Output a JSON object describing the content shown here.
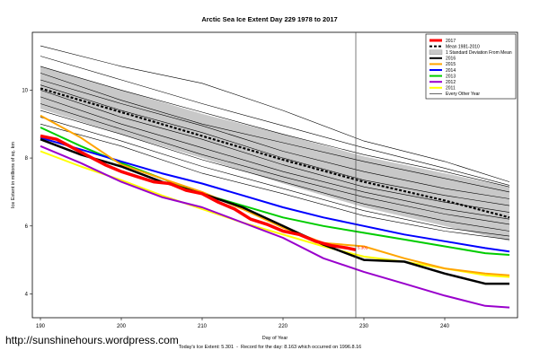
{
  "chart_data": {
    "type": "line",
    "title": "Arctic Sea Ice Extent Day 229 1978 to 2017",
    "xlabel": "Day of Year",
    "ylabel": "Ice Extent in millions of sq. km",
    "xlim": [
      189,
      249
    ],
    "ylim": [
      3.3,
      11.7
    ],
    "x_ticks": [
      190,
      200,
      210,
      220,
      230,
      240
    ],
    "y_ticks": [
      4,
      6,
      8,
      10
    ],
    "marker_day": 229,
    "marker_label": "5.301",
    "legend_position": "top-right",
    "mean_1981_2010": {
      "x": [
        190,
        200,
        210,
        220,
        230,
        240,
        248
      ],
      "values": [
        10.05,
        9.35,
        8.65,
        7.95,
        7.3,
        6.75,
        6.25
      ]
    },
    "std_band": {
      "x": [
        190,
        200,
        210,
        220,
        230,
        240,
        248
      ],
      "upper": [
        10.7,
        10.0,
        9.3,
        8.7,
        8.05,
        7.55,
        7.15
      ],
      "lower": [
        9.45,
        8.7,
        8.0,
        7.25,
        6.55,
        6.0,
        5.55
      ]
    },
    "series": [
      {
        "name": "2017",
        "color": "#ff0000",
        "width": 3.5,
        "x": [
          190,
          192,
          194,
          196,
          198,
          200,
          202,
          204,
          206,
          208,
          210,
          212,
          214,
          216,
          218,
          220,
          222,
          224,
          226,
          228,
          229
        ],
        "values": [
          8.65,
          8.55,
          8.3,
          8.05,
          7.8,
          7.6,
          7.45,
          7.3,
          7.25,
          7.05,
          6.95,
          6.7,
          6.5,
          6.2,
          6.05,
          5.85,
          5.75,
          5.55,
          5.42,
          5.35,
          5.3
        ]
      },
      {
        "name": "2016",
        "color": "#000000",
        "width": 2.5,
        "x": [
          190,
          195,
          200,
          205,
          210,
          215,
          220,
          225,
          230,
          235,
          240,
          245,
          248
        ],
        "values": [
          8.55,
          8.1,
          7.75,
          7.3,
          6.95,
          6.55,
          6.0,
          5.45,
          5.0,
          4.95,
          4.6,
          4.3,
          4.3
        ]
      },
      {
        "name": "2015",
        "color": "#ffa500",
        "width": 2,
        "x": [
          190,
          195,
          200,
          205,
          210,
          215,
          220,
          225,
          230,
          235,
          240,
          245,
          248
        ],
        "values": [
          9.25,
          8.6,
          7.8,
          7.4,
          7.0,
          6.5,
          5.95,
          5.5,
          5.4,
          5.05,
          4.75,
          4.6,
          4.55
        ]
      },
      {
        "name": "2014",
        "color": "#0000ff",
        "width": 2,
        "x": [
          190,
          195,
          200,
          205,
          210,
          215,
          220,
          225,
          230,
          235,
          240,
          245,
          248
        ],
        "values": [
          8.6,
          8.25,
          7.9,
          7.55,
          7.25,
          6.9,
          6.55,
          6.25,
          6.0,
          5.75,
          5.55,
          5.35,
          5.25
        ]
      },
      {
        "name": "2013",
        "color": "#00cc00",
        "width": 2,
        "x": [
          190,
          195,
          200,
          205,
          210,
          215,
          220,
          225,
          230,
          235,
          240,
          245,
          248
        ],
        "values": [
          8.9,
          8.35,
          7.85,
          7.4,
          6.95,
          6.6,
          6.25,
          6.0,
          5.8,
          5.6,
          5.4,
          5.2,
          5.15
        ]
      },
      {
        "name": "2012",
        "color": "#9900cc",
        "width": 2,
        "x": [
          190,
          195,
          200,
          205,
          210,
          215,
          220,
          225,
          230,
          235,
          240,
          245,
          248
        ],
        "values": [
          8.35,
          7.85,
          7.3,
          6.85,
          6.55,
          6.1,
          5.65,
          5.05,
          4.65,
          4.3,
          3.95,
          3.65,
          3.6
        ]
      },
      {
        "name": "2011",
        "color": "#ffff00",
        "width": 2,
        "x": [
          190,
          195,
          200,
          205,
          210,
          215,
          220,
          225,
          230,
          235,
          240,
          245,
          248
        ],
        "values": [
          8.2,
          7.75,
          7.35,
          6.9,
          6.5,
          6.1,
          5.75,
          5.4,
          5.1,
          4.95,
          4.75,
          4.55,
          4.5
        ]
      },
      {
        "name": "Every Other Year",
        "color": "#000000",
        "width": 0.6,
        "x": [
          190,
          200,
          210,
          220,
          230,
          240,
          248
        ],
        "values": [
          11.3,
          10.7,
          10.2,
          9.4,
          8.5,
          7.9,
          7.3
        ]
      },
      {
        "name": "",
        "color": "#000000",
        "width": 0.6,
        "x": [
          190,
          200,
          210,
          220,
          230,
          240,
          248
        ],
        "values": [
          11.0,
          10.3,
          9.6,
          8.95,
          8.3,
          7.7,
          7.2
        ]
      },
      {
        "name": "",
        "color": "#000000",
        "width": 0.6,
        "x": [
          190,
          200,
          210,
          220,
          230,
          240,
          248
        ],
        "values": [
          10.7,
          10.0,
          9.35,
          8.7,
          8.1,
          7.6,
          7.15
        ]
      },
      {
        "name": "",
        "color": "#000000",
        "width": 0.6,
        "x": [
          190,
          200,
          210,
          220,
          230,
          240,
          248
        ],
        "values": [
          10.5,
          9.7,
          9.0,
          8.45,
          7.9,
          7.4,
          7.0
        ]
      },
      {
        "name": "",
        "color": "#000000",
        "width": 0.6,
        "x": [
          190,
          200,
          210,
          220,
          230,
          240,
          248
        ],
        "values": [
          10.3,
          9.6,
          8.95,
          8.2,
          7.6,
          7.1,
          6.8
        ]
      },
      {
        "name": "",
        "color": "#000000",
        "width": 0.6,
        "x": [
          190,
          200,
          210,
          220,
          230,
          240,
          248
        ],
        "values": [
          10.15,
          9.4,
          8.75,
          8.0,
          7.35,
          6.9,
          6.6
        ]
      },
      {
        "name": "",
        "color": "#000000",
        "width": 0.6,
        "x": [
          190,
          200,
          210,
          220,
          230,
          240,
          248
        ],
        "values": [
          10.0,
          9.2,
          8.55,
          7.8,
          7.15,
          6.7,
          6.4
        ]
      },
      {
        "name": "",
        "color": "#000000",
        "width": 0.6,
        "x": [
          190,
          200,
          210,
          220,
          230,
          240,
          248
        ],
        "values": [
          9.8,
          9.0,
          8.3,
          7.6,
          7.0,
          6.5,
          6.2
        ]
      },
      {
        "name": "",
        "color": "#000000",
        "width": 0.6,
        "x": [
          190,
          200,
          210,
          220,
          230,
          240,
          248
        ],
        "values": [
          9.6,
          8.85,
          8.1,
          7.45,
          6.85,
          6.35,
          6.05
        ]
      },
      {
        "name": "",
        "color": "#000000",
        "width": 0.6,
        "x": [
          190,
          200,
          210,
          220,
          230,
          240,
          248
        ],
        "values": [
          9.4,
          8.7,
          7.95,
          7.3,
          6.65,
          6.15,
          5.85
        ]
      },
      {
        "name": "",
        "color": "#000000",
        "width": 0.6,
        "x": [
          190,
          200,
          210,
          220,
          230,
          240,
          248
        ],
        "values": [
          9.2,
          8.5,
          7.75,
          7.1,
          6.45,
          5.95,
          5.7
        ]
      },
      {
        "name": "",
        "color": "#000000",
        "width": 0.6,
        "x": [
          190,
          200,
          210,
          220,
          230,
          240,
          248
        ],
        "values": [
          9.0,
          8.35,
          7.55,
          6.95,
          6.3,
          5.85,
          5.6
        ]
      }
    ]
  },
  "legend": {
    "std_label": "1 Standard Deviation From Mean",
    "mean_label": "Mean 1981-2010"
  },
  "footer": {
    "url": "http://sunshinehours.wordpress.com",
    "ice_text": "Today's Ice Extent: 5.301  -  Record for the day: 8.163 which occurred on 1996.8.16"
  }
}
